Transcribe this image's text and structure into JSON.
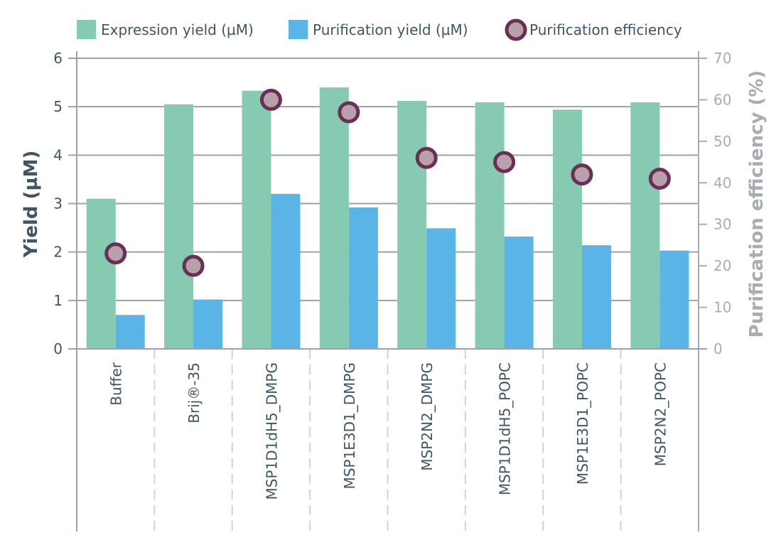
{
  "chart_data": {
    "type": "bar",
    "categories": [
      "Buffer",
      "Brij®-35",
      "MSP1D1dH5_DMPG",
      "MSP1E3D1_DMPG",
      "MSP2N2_DMPG",
      "MSP1D1dH5_POPC",
      "MSP1E3D1_POPC",
      "MSP2N2_POPC"
    ],
    "series": [
      {
        "name": "Expression yield (µM)",
        "type": "bar",
        "axis": "left",
        "color": "#86cbb1",
        "values": [
          3.1,
          5.05,
          5.33,
          5.4,
          5.12,
          5.09,
          4.94,
          5.09
        ]
      },
      {
        "name": "Purification yield (µM)",
        "type": "bar",
        "axis": "left",
        "color": "#5ab4e5",
        "values": [
          0.7,
          1.02,
          3.2,
          2.92,
          2.49,
          2.32,
          2.14,
          2.03
        ]
      },
      {
        "name": "Purification efficiency",
        "type": "scatter",
        "axis": "right",
        "color": "#b9a1ab",
        "stroke": "#6b2f55",
        "values": [
          23,
          20,
          60,
          57,
          46,
          45,
          42,
          41
        ]
      }
    ],
    "ylabel": "Yield (µM)",
    "y2label": "Purification efficiency (%)",
    "ylim": [
      0,
      6
    ],
    "y2lim": [
      0,
      70
    ],
    "yticks": [
      "0",
      "1",
      "2",
      "3",
      "4",
      "5",
      "6"
    ],
    "y2ticks": [
      "0",
      "10",
      "20",
      "30",
      "40",
      "50",
      "60",
      "70"
    ],
    "legend": "top",
    "grid": true
  },
  "colors": {
    "left_axis": "#3f5566",
    "right_axis": "#a8adb3",
    "grid": "#9aa3ab",
    "divider": "#cfd3d7"
  }
}
